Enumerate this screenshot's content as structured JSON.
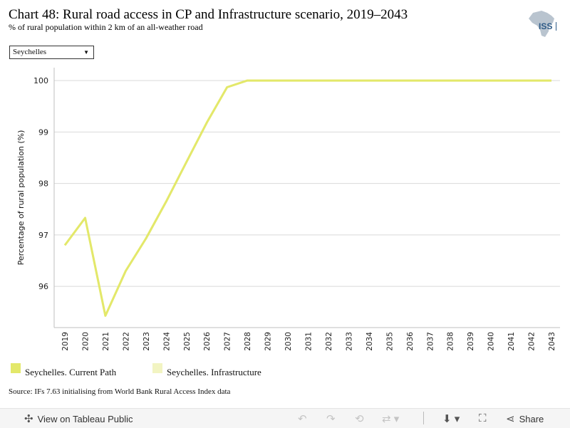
{
  "header": {
    "title": "Chart 48: Rural road access in CP and Infrastructure scenario, 2019–2043",
    "subtitle": "% of rural population within 2 km of an all-weather road",
    "logo_text": "ISS"
  },
  "filter": {
    "selected": "Seychelles"
  },
  "chart_data": {
    "type": "line",
    "title": "",
    "xlabel": "",
    "ylabel": "Percentage of rural population (%)",
    "ylim": [
      95.2,
      100.25
    ],
    "yticks": [
      96,
      97,
      98,
      99,
      100
    ],
    "x": [
      "2019",
      "2020",
      "2021",
      "2022",
      "2023",
      "2024",
      "2025",
      "2026",
      "2027",
      "2028",
      "2029",
      "2030",
      "2031",
      "2032",
      "2033",
      "2034",
      "2035",
      "2036",
      "2037",
      "2038",
      "2039",
      "2040",
      "2041",
      "2042",
      "2043"
    ],
    "series": [
      {
        "name": "Seychelles. Current Path",
        "color": "#e3e86a",
        "values": [
          96.8,
          97.33,
          95.43,
          96.3,
          96.93,
          97.65,
          98.42,
          99.18,
          99.87,
          100,
          100,
          100,
          100,
          100,
          100,
          100,
          100,
          100,
          100,
          100,
          100,
          100,
          100,
          100,
          100
        ]
      },
      {
        "name": "Seychelles. Infrastructure",
        "color": "#f2f4c2",
        "values": [
          96.8,
          97.33,
          95.43,
          96.3,
          96.93,
          97.65,
          98.42,
          99.18,
          99.87,
          100,
          100,
          100,
          100,
          100,
          100,
          100,
          100,
          100,
          100,
          100,
          100,
          100,
          100,
          100,
          100
        ]
      }
    ],
    "grid": true,
    "legend_position": "bottom-left"
  },
  "source": "Source: IFs 7.63 initialising from World Bank Rural Access Index data",
  "toolbar": {
    "view_label": "View on Tableau Public",
    "share_label": "Share"
  },
  "icons": [
    "tableau-icon",
    "undo-icon",
    "redo-icon",
    "revert-icon",
    "refresh-icon",
    "download-icon",
    "fullscreen-icon",
    "share-icon",
    "africa-map-icon"
  ]
}
